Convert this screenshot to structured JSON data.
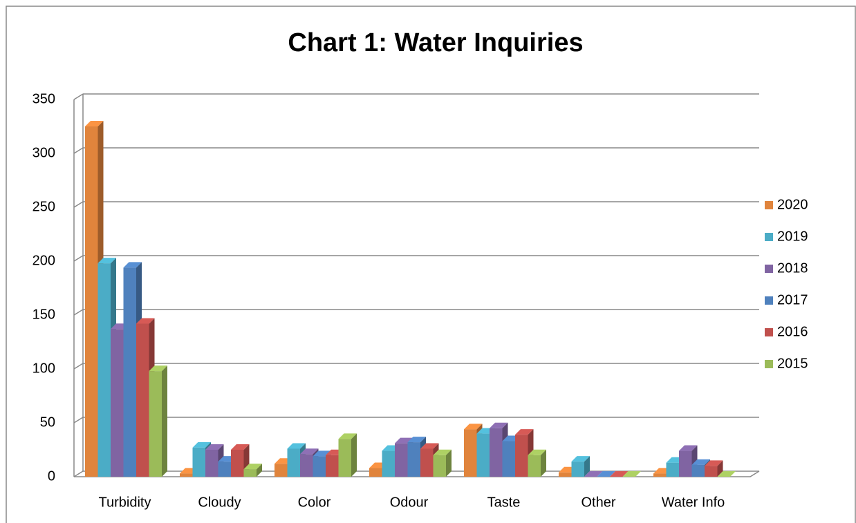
{
  "chart_data": {
    "type": "bar3d",
    "title": "Chart 1: Water Inquiries",
    "categories": [
      "Turbidity",
      "Cloudy",
      "Color",
      "Odour",
      "Taste",
      "Other",
      "Water Info"
    ],
    "series": [
      {
        "name": "2020",
        "color": "#e0843c",
        "values": [
          325,
          3,
          12,
          8,
          44,
          4,
          3
        ]
      },
      {
        "name": "2019",
        "color": "#4bacc6",
        "values": [
          198,
          27,
          26,
          24,
          40,
          14,
          13
        ]
      },
      {
        "name": "2018",
        "color": "#8064a2",
        "values": [
          137,
          25,
          21,
          31,
          45,
          0,
          24
        ]
      },
      {
        "name": "2017",
        "color": "#4f81bd",
        "values": [
          194,
          14,
          19,
          32,
          33,
          0,
          11
        ]
      },
      {
        "name": "2016",
        "color": "#c0504d",
        "values": [
          142,
          25,
          20,
          26,
          39,
          0,
          10
        ]
      },
      {
        "name": "2015",
        "color": "#9bbb59",
        "values": [
          98,
          7,
          35,
          20,
          20,
          0,
          0
        ]
      }
    ],
    "ylim": [
      0,
      350
    ],
    "yticks": [
      0,
      50,
      100,
      150,
      200,
      250,
      300,
      350
    ],
    "grid": true,
    "legend": "right"
  }
}
